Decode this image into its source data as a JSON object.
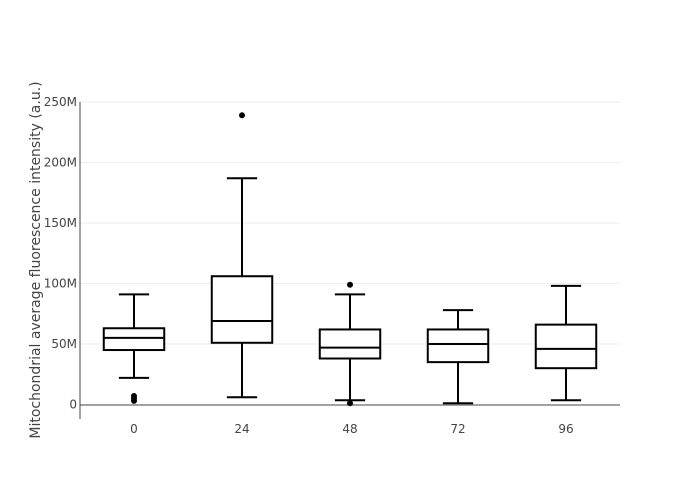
{
  "chart_data": {
    "type": "box",
    "title": "",
    "xlabel": "",
    "ylabel": "Mitochondrial average fluorescence intensity (a.u.)",
    "ylim": [
      -12000000,
      250000000
    ],
    "yticks": [
      {
        "value": 0,
        "label": "0"
      },
      {
        "value": 50000000,
        "label": "50M"
      },
      {
        "value": 100000000,
        "label": "100M"
      },
      {
        "value": 150000000,
        "label": "150M"
      },
      {
        "value": 200000000,
        "label": "200M"
      },
      {
        "value": 250000000,
        "label": "250M"
      }
    ],
    "grid": true,
    "legend": false,
    "color": "#000000",
    "categories": [
      "0",
      "24",
      "48",
      "72",
      "96"
    ],
    "boxes": [
      {
        "category": "0",
        "lower_whisker": 22000000,
        "q1": 45000000,
        "median": 55000000,
        "q3": 63000000,
        "upper_whisker": 91000000,
        "outliers": [
          7000000,
          5000000,
          3000000
        ]
      },
      {
        "category": "24",
        "lower_whisker": 6000000,
        "q1": 51000000,
        "median": 69000000,
        "q3": 106000000,
        "upper_whisker": 187000000,
        "outliers": [
          239000000
        ]
      },
      {
        "category": "48",
        "lower_whisker": 3500000,
        "q1": 38000000,
        "median": 47000000,
        "q3": 62000000,
        "upper_whisker": 91000000,
        "outliers": [
          99000000,
          1000000
        ]
      },
      {
        "category": "72",
        "lower_whisker": 1000000,
        "q1": 35000000,
        "median": 50000000,
        "q3": 62000000,
        "upper_whisker": 78000000,
        "outliers": []
      },
      {
        "category": "96",
        "lower_whisker": 3500000,
        "q1": 30000000,
        "median": 46000000,
        "q3": 66000000,
        "upper_whisker": 98000000,
        "outliers": []
      }
    ]
  }
}
